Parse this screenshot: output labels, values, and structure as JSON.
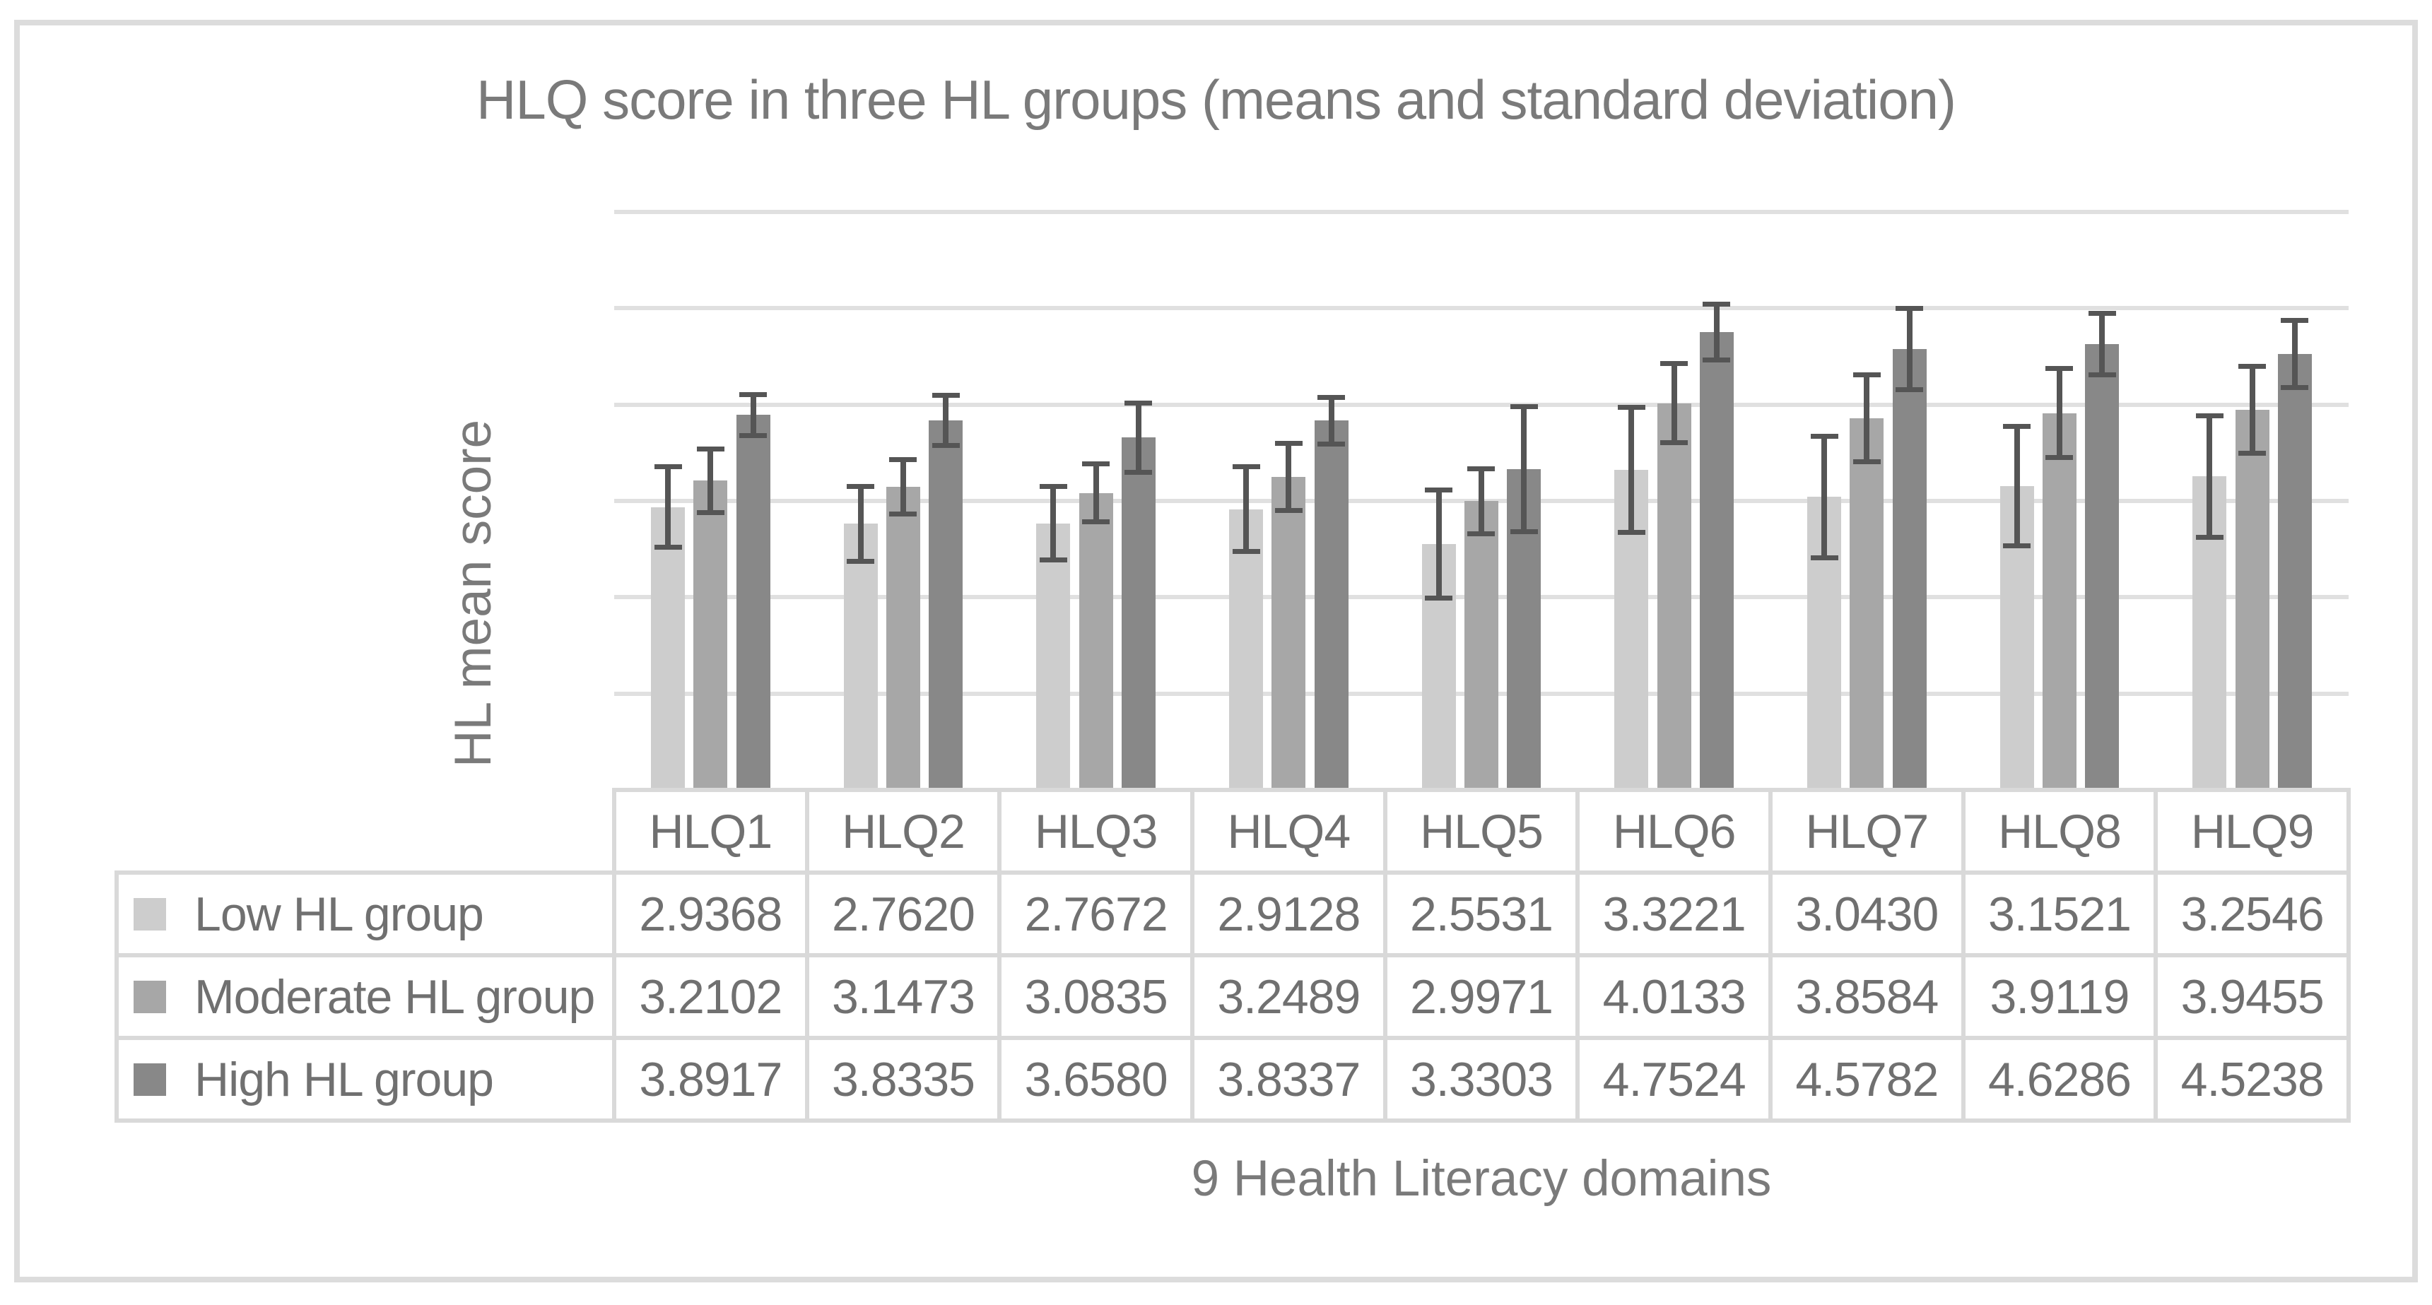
{
  "chart_data": {
    "type": "bar",
    "title": "HLQ score in three HL groups (means and standard deviation)",
    "xlabel": "9 Health Literacy domains",
    "ylabel": "HL mean score",
    "categories": [
      "HLQ1",
      "HLQ2",
      "HLQ3",
      "HLQ4",
      "HLQ5",
      "HLQ6",
      "HLQ7",
      "HLQ8",
      "HLQ9"
    ],
    "series": [
      {
        "name": "Low HL group",
        "color": "#cdcdcd",
        "values": [
          2.9368,
          2.762,
          2.7672,
          2.9128,
          2.5531,
          3.3221,
          3.043,
          3.1521,
          3.2546
        ],
        "sd": [
          0.42,
          0.39,
          0.38,
          0.44,
          0.56,
          0.65,
          0.63,
          0.62,
          0.63
        ]
      },
      {
        "name": "Moderate HL group",
        "color": "#a7a7a7",
        "values": [
          3.2102,
          3.1473,
          3.0835,
          3.2489,
          2.9971,
          4.0133,
          3.8584,
          3.9119,
          3.9455
        ],
        "sd": [
          0.33,
          0.28,
          0.3,
          0.35,
          0.34,
          0.41,
          0.45,
          0.46,
          0.45
        ]
      },
      {
        "name": "High HL group",
        "color": "#888888",
        "values": [
          3.8917,
          3.8335,
          3.658,
          3.8337,
          3.3303,
          4.7524,
          4.5782,
          4.6286,
          4.5238
        ],
        "sd": [
          0.21,
          0.26,
          0.36,
          0.24,
          0.65,
          0.29,
          0.42,
          0.32,
          0.35
        ]
      }
    ],
    "ylim": [
      0,
      6
    ],
    "gridline_step": 1,
    "grid": true,
    "error_bars": true,
    "legend_position": "table-rows-left",
    "value_format_decimals": 4,
    "colors": {
      "error_bar": "#555555",
      "gridline": "#e0e0e0",
      "table_border": "#d9d9d9",
      "table_text": "#707070",
      "title_text": "#7a7a7a",
      "outer_border": "#dcdcdc"
    }
  }
}
